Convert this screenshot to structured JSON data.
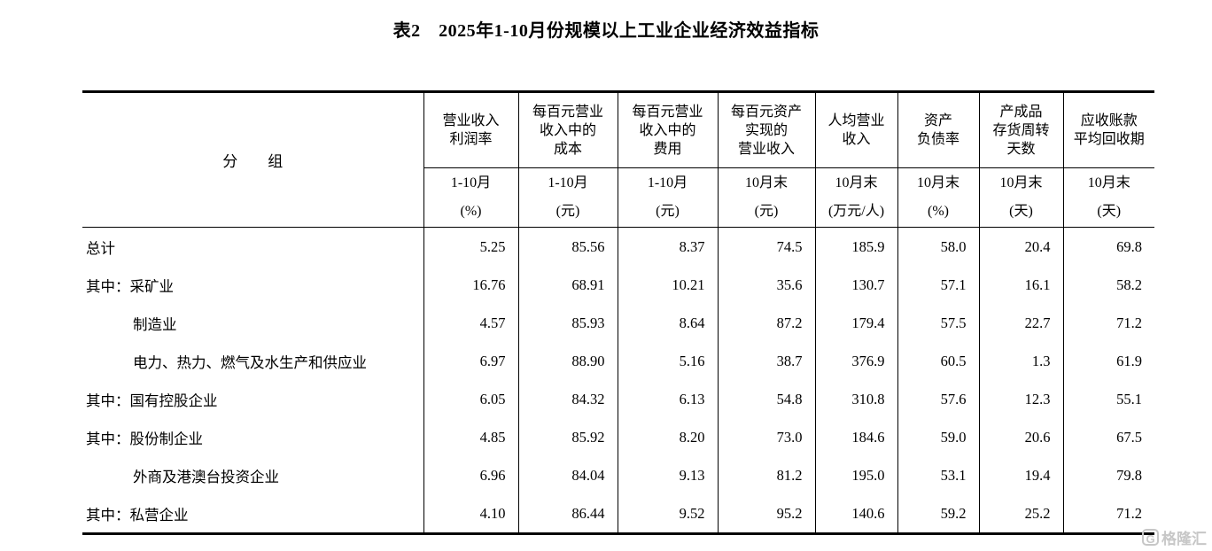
{
  "title": "表2　2025年1-10月份规模以上工业企业经济效益指标",
  "table": {
    "group_header": "分　　组",
    "columns": [
      {
        "title": "营业收入\n利润率",
        "period": "1-10月",
        "unit": "(%)"
      },
      {
        "title": "每百元营业\n收入中的\n成本",
        "period": "1-10月",
        "unit": "(元)"
      },
      {
        "title": "每百元营业\n收入中的\n费用",
        "period": "1-10月",
        "unit": "(元)"
      },
      {
        "title": "每百元资产\n实现的\n营业收入",
        "period": "10月末",
        "unit": "(元)"
      },
      {
        "title": "人均营业\n收入",
        "period": "10月末",
        "unit": "(万元/人)"
      },
      {
        "title": "资产\n负债率",
        "period": "10月末",
        "unit": "(%)"
      },
      {
        "title": "产成品\n存货周转\n天数",
        "period": "10月末",
        "unit": "(天)"
      },
      {
        "title": "应收账款\n平均回收期",
        "period": "10月末",
        "unit": "(天)"
      }
    ],
    "rows": [
      {
        "label": "总计",
        "indent": false,
        "values": [
          "5.25",
          "85.56",
          "8.37",
          "74.5",
          "185.9",
          "58.0",
          "20.4",
          "69.8"
        ]
      },
      {
        "label": "其中：采矿业",
        "indent": false,
        "values": [
          "16.76",
          "68.91",
          "10.21",
          "35.6",
          "130.7",
          "57.1",
          "16.1",
          "58.2"
        ]
      },
      {
        "label": "制造业",
        "indent": true,
        "values": [
          "4.57",
          "85.93",
          "8.64",
          "87.2",
          "179.4",
          "57.5",
          "22.7",
          "71.2"
        ]
      },
      {
        "label": "电力、热力、燃气及水生产和供应业",
        "indent": true,
        "values": [
          "6.97",
          "88.90",
          "5.16",
          "38.7",
          "376.9",
          "60.5",
          "1.3",
          "61.9"
        ]
      },
      {
        "label": "其中：国有控股企业",
        "indent": false,
        "values": [
          "6.05",
          "84.32",
          "6.13",
          "54.8",
          "310.8",
          "57.6",
          "12.3",
          "55.1"
        ]
      },
      {
        "label": "其中：股份制企业",
        "indent": false,
        "values": [
          "4.85",
          "85.92",
          "8.20",
          "73.0",
          "184.6",
          "59.0",
          "20.6",
          "67.5"
        ]
      },
      {
        "label": "外商及港澳台投资企业",
        "indent": true,
        "values": [
          "6.96",
          "84.04",
          "9.13",
          "81.2",
          "195.0",
          "53.1",
          "19.4",
          "79.8"
        ]
      },
      {
        "label": "其中：私营企业",
        "indent": false,
        "values": [
          "4.10",
          "86.44",
          "9.52",
          "95.2",
          "140.6",
          "59.2",
          "25.2",
          "71.2"
        ]
      }
    ]
  },
  "watermark": {
    "badge": "G",
    "text": "格隆汇",
    "color": "#c7c7c7"
  }
}
